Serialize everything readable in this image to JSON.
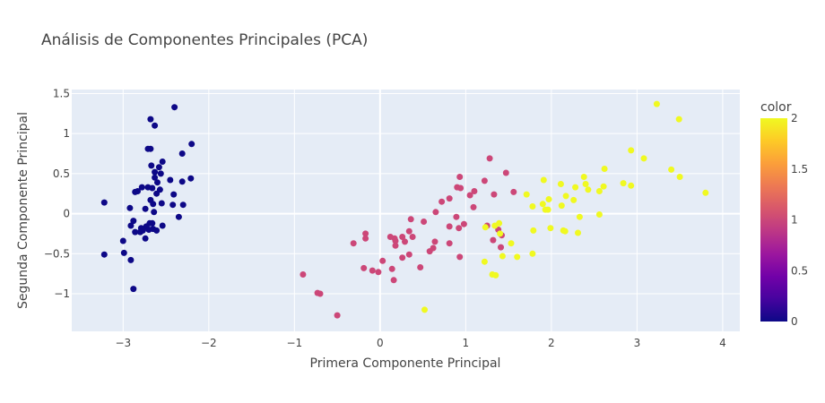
{
  "chart_data": {
    "type": "scatter",
    "title": "Análisis de Componentes Principales (PCA)",
    "xlabel": "Primera Componente Principal",
    "ylabel": "Segunda Componente Principal",
    "xlim": [
      -3.6,
      4.2
    ],
    "ylim": [
      -1.47,
      1.55
    ],
    "xticks": [
      -3,
      -2,
      -1,
      0,
      1,
      2,
      3,
      4
    ],
    "xtick_labels": [
      "−3",
      "−2",
      "−1",
      "0",
      "1",
      "2",
      "3",
      "4"
    ],
    "yticks": [
      -1,
      -0.5,
      0,
      0.5,
      1,
      1.5
    ],
    "ytick_labels": [
      "−1",
      "−0.5",
      "0",
      "0.5",
      "1",
      "1.5"
    ],
    "grid": true,
    "colorbar": {
      "title": "color",
      "range": [
        0,
        2
      ],
      "ticks": [
        0,
        0.5,
        1,
        1.5,
        2
      ],
      "tick_labels": [
        "0",
        "0.5",
        "1",
        "1.5",
        "2"
      ],
      "colors": [
        "#0d0887",
        "#46039f",
        "#7201a8",
        "#9c179e",
        "#bd3786",
        "#d8576b",
        "#ed7953",
        "#fb9f3a",
        "#fdca26",
        "#f0f921"
      ]
    },
    "series": [
      {
        "value": 0,
        "color": "#0d0887",
        "points": [
          [
            -2.4,
            1.33
          ],
          [
            -2.68,
            1.18
          ],
          [
            -2.63,
            1.1
          ],
          [
            -2.2,
            0.87
          ],
          [
            -2.68,
            0.81
          ],
          [
            -2.71,
            0.81
          ],
          [
            -2.31,
            0.75
          ],
          [
            -2.54,
            0.65
          ],
          [
            -2.58,
            0.58
          ],
          [
            -2.67,
            0.6
          ],
          [
            -2.63,
            0.52
          ],
          [
            -2.56,
            0.5
          ],
          [
            -2.63,
            0.45
          ],
          [
            -2.21,
            0.44
          ],
          [
            -2.45,
            0.42
          ],
          [
            -2.6,
            0.39
          ],
          [
            -2.31,
            0.4
          ],
          [
            -2.71,
            0.33
          ],
          [
            -2.78,
            0.33
          ],
          [
            -2.66,
            0.32
          ],
          [
            -2.83,
            0.28
          ],
          [
            -2.86,
            0.27
          ],
          [
            -2.57,
            0.3
          ],
          [
            -2.41,
            0.24
          ],
          [
            -2.61,
            0.25
          ],
          [
            -2.68,
            0.17
          ],
          [
            -2.65,
            0.12
          ],
          [
            -2.55,
            0.13
          ],
          [
            -2.42,
            0.11
          ],
          [
            -2.3,
            0.11
          ],
          [
            -3.22,
            0.14
          ],
          [
            -2.92,
            0.07
          ],
          [
            -2.74,
            0.06
          ],
          [
            -2.64,
            0.02
          ],
          [
            -2.35,
            -0.04
          ],
          [
            -2.69,
            -0.12
          ],
          [
            -2.66,
            -0.12
          ],
          [
            -2.73,
            -0.16
          ],
          [
            -2.91,
            -0.15
          ],
          [
            -2.54,
            -0.15
          ],
          [
            -2.65,
            -0.19
          ],
          [
            -2.79,
            -0.18
          ],
          [
            -2.7,
            -0.2
          ],
          [
            -2.61,
            -0.21
          ],
          [
            -2.77,
            -0.21
          ],
          [
            -2.86,
            -0.23
          ],
          [
            -2.8,
            -0.23
          ],
          [
            -2.88,
            -0.09
          ],
          [
            -2.74,
            -0.31
          ],
          [
            -3.0,
            -0.34
          ],
          [
            -3.22,
            -0.51
          ],
          [
            -2.99,
            -0.49
          ],
          [
            -2.91,
            -0.58
          ],
          [
            -2.88,
            -0.94
          ]
        ]
      },
      {
        "value": 1,
        "color": "#cc4778",
        "points": [
          [
            1.28,
            0.69
          ],
          [
            1.47,
            0.51
          ],
          [
            0.93,
            0.46
          ],
          [
            0.9,
            0.33
          ],
          [
            0.94,
            0.32
          ],
          [
            1.22,
            0.41
          ],
          [
            1.1,
            0.28
          ],
          [
            1.05,
            0.23
          ],
          [
            1.56,
            0.27
          ],
          [
            1.33,
            0.24
          ],
          [
            0.72,
            0.15
          ],
          [
            0.81,
            0.19
          ],
          [
            0.65,
            0.02
          ],
          [
            0.98,
            -0.13
          ],
          [
            0.89,
            -0.04
          ],
          [
            1.09,
            0.08
          ],
          [
            0.36,
            -0.07
          ],
          [
            0.51,
            -0.1
          ],
          [
            0.81,
            -0.16
          ],
          [
            0.92,
            -0.18
          ],
          [
            0.26,
            -0.29
          ],
          [
            0.29,
            -0.35
          ],
          [
            0.34,
            -0.22
          ],
          [
            0.17,
            -0.31
          ],
          [
            0.12,
            -0.29
          ],
          [
            0.18,
            -0.34
          ],
          [
            -0.17,
            -0.25
          ],
          [
            -0.17,
            -0.31
          ],
          [
            -0.31,
            -0.37
          ],
          [
            0.38,
            -0.29
          ],
          [
            0.64,
            -0.35
          ],
          [
            0.62,
            -0.43
          ],
          [
            0.58,
            -0.47
          ],
          [
            0.81,
            -0.37
          ],
          [
            0.18,
            -0.4
          ],
          [
            0.34,
            -0.51
          ],
          [
            0.26,
            -0.55
          ],
          [
            0.03,
            -0.59
          ],
          [
            -0.19,
            -0.68
          ],
          [
            -0.09,
            -0.71
          ],
          [
            -0.02,
            -0.73
          ],
          [
            0.14,
            -0.69
          ],
          [
            0.47,
            -0.67
          ],
          [
            0.16,
            -0.83
          ],
          [
            -0.9,
            -0.76
          ],
          [
            -0.73,
            -0.99
          ],
          [
            -0.7,
            -1.0
          ],
          [
            -0.5,
            -1.27
          ],
          [
            1.41,
            -0.42
          ],
          [
            1.25,
            -0.15
          ],
          [
            1.42,
            -0.27
          ],
          [
            1.32,
            -0.33
          ],
          [
            1.38,
            -0.2
          ],
          [
            0.93,
            -0.54
          ]
        ]
      },
      {
        "value": 2,
        "color": "#f0f921",
        "points": [
          [
            3.23,
            1.37
          ],
          [
            3.49,
            1.18
          ],
          [
            2.93,
            0.79
          ],
          [
            3.08,
            0.69
          ],
          [
            2.62,
            0.56
          ],
          [
            3.4,
            0.55
          ],
          [
            3.5,
            0.46
          ],
          [
            2.38,
            0.46
          ],
          [
            2.84,
            0.38
          ],
          [
            2.93,
            0.35
          ],
          [
            2.61,
            0.34
          ],
          [
            3.8,
            0.26
          ],
          [
            2.43,
            0.3
          ],
          [
            2.56,
            0.28
          ],
          [
            2.4,
            0.37
          ],
          [
            2.28,
            0.33
          ],
          [
            2.17,
            0.22
          ],
          [
            2.11,
            0.37
          ],
          [
            1.91,
            0.42
          ],
          [
            1.71,
            0.24
          ],
          [
            1.97,
            0.18
          ],
          [
            1.9,
            0.12
          ],
          [
            1.93,
            0.05
          ],
          [
            1.96,
            0.05
          ],
          [
            1.78,
            0.09
          ],
          [
            2.12,
            0.1
          ],
          [
            2.26,
            0.17
          ],
          [
            2.33,
            -0.04
          ],
          [
            2.56,
            -0.01
          ],
          [
            1.34,
            -0.15
          ],
          [
            1.39,
            -0.12
          ],
          [
            1.23,
            -0.17
          ],
          [
            1.4,
            -0.25
          ],
          [
            1.79,
            -0.21
          ],
          [
            1.99,
            -0.18
          ],
          [
            2.14,
            -0.21
          ],
          [
            2.16,
            -0.22
          ],
          [
            2.31,
            -0.24
          ],
          [
            1.53,
            -0.37
          ],
          [
            1.43,
            -0.53
          ],
          [
            1.6,
            -0.54
          ],
          [
            1.78,
            -0.5
          ],
          [
            1.22,
            -0.6
          ],
          [
            1.31,
            -0.76
          ],
          [
            1.35,
            -0.77
          ],
          [
            0.52,
            -1.2
          ]
        ]
      }
    ]
  }
}
